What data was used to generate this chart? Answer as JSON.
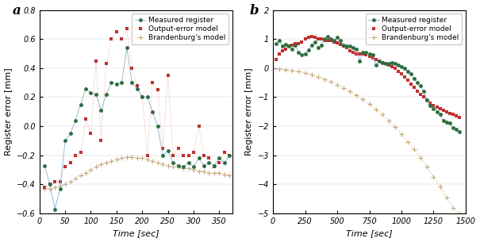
{
  "a": {
    "measured_x": [
      10,
      20,
      30,
      40,
      50,
      60,
      70,
      80,
      90,
      100,
      110,
      120,
      130,
      140,
      150,
      160,
      170,
      180,
      190,
      200,
      210,
      220,
      230,
      240,
      250,
      260,
      270,
      280,
      290,
      300,
      310,
      320,
      330,
      340,
      350,
      360,
      370
    ],
    "measured_y": [
      -0.27,
      -0.4,
      -0.57,
      -0.43,
      -0.1,
      -0.05,
      0.04,
      0.15,
      0.26,
      0.23,
      0.22,
      0.11,
      0.22,
      0.3,
      0.29,
      0.3,
      0.54,
      0.3,
      0.26,
      0.2,
      0.2,
      0.1,
      0.0,
      -0.2,
      -0.17,
      -0.25,
      -0.27,
      -0.28,
      -0.25,
      -0.28,
      -0.22,
      -0.27,
      -0.25,
      -0.27,
      -0.22,
      -0.25,
      -0.2
    ],
    "oe_x": [
      10,
      20,
      30,
      40,
      50,
      60,
      70,
      80,
      90,
      100,
      110,
      120,
      130,
      140,
      150,
      160,
      170,
      180,
      190,
      200,
      210,
      220,
      230,
      240,
      250,
      260,
      270,
      280,
      290,
      300,
      310,
      320,
      330,
      340,
      350,
      360,
      370
    ],
    "oe_y": [
      -0.42,
      -0.4,
      -0.38,
      -0.38,
      -0.28,
      -0.25,
      -0.2,
      -0.18,
      0.05,
      -0.05,
      0.45,
      -0.1,
      0.43,
      0.6,
      0.65,
      0.6,
      0.67,
      0.4,
      0.28,
      0.2,
      -0.2,
      0.3,
      0.25,
      -0.15,
      0.35,
      -0.2,
      -0.15,
      -0.2,
      -0.2,
      -0.18,
      0.0,
      -0.2,
      -0.22,
      -0.28,
      -0.25,
      -0.18,
      -0.2
    ],
    "brand_x": [
      10,
      20,
      30,
      40,
      50,
      60,
      70,
      80,
      90,
      100,
      110,
      120,
      130,
      140,
      150,
      160,
      170,
      180,
      190,
      200,
      210,
      220,
      230,
      240,
      250,
      260,
      270,
      280,
      290,
      300,
      310,
      320,
      330,
      340,
      350,
      360,
      370
    ],
    "brand_y": [
      -0.43,
      -0.43,
      -0.42,
      -0.41,
      -0.4,
      -0.38,
      -0.36,
      -0.34,
      -0.32,
      -0.3,
      -0.28,
      -0.26,
      -0.25,
      -0.24,
      -0.23,
      -0.22,
      -0.21,
      -0.21,
      -0.22,
      -0.22,
      -0.23,
      -0.24,
      -0.25,
      -0.26,
      -0.27,
      -0.28,
      -0.28,
      -0.29,
      -0.29,
      -0.3,
      -0.31,
      -0.31,
      -0.32,
      -0.32,
      -0.32,
      -0.33,
      -0.34
    ],
    "xlim": [
      0,
      375
    ],
    "ylim": [
      -0.6,
      0.8
    ],
    "xticks": [
      0,
      50,
      100,
      150,
      200,
      250,
      300,
      350
    ],
    "yticks": [
      -0.6,
      -0.4,
      -0.2,
      0.0,
      0.2,
      0.4,
      0.6,
      0.8
    ],
    "xlabel": "Time [sec]",
    "ylabel": "Register error [mm]",
    "label": "a"
  },
  "b": {
    "measured_x": [
      25,
      50,
      75,
      100,
      125,
      150,
      175,
      200,
      225,
      250,
      275,
      300,
      325,
      350,
      375,
      400,
      425,
      450,
      475,
      500,
      525,
      550,
      575,
      600,
      625,
      650,
      675,
      700,
      725,
      750,
      775,
      800,
      825,
      850,
      875,
      900,
      925,
      950,
      975,
      1000,
      1025,
      1050,
      1075,
      1100,
      1125,
      1150,
      1175,
      1200,
      1225,
      1250,
      1275,
      1300,
      1325,
      1350,
      1375,
      1400,
      1425,
      1450
    ],
    "measured_y": [
      0.85,
      0.95,
      0.75,
      0.82,
      0.75,
      0.65,
      0.78,
      0.55,
      0.45,
      0.5,
      0.62,
      0.8,
      0.9,
      0.7,
      0.8,
      1.0,
      1.1,
      1.0,
      0.95,
      1.05,
      0.95,
      0.8,
      0.75,
      0.75,
      0.7,
      0.65,
      0.25,
      0.55,
      0.55,
      0.5,
      0.45,
      0.1,
      0.25,
      0.2,
      0.15,
      0.15,
      0.2,
      0.15,
      0.1,
      0.05,
      0.0,
      -0.1,
      -0.2,
      -0.35,
      -0.5,
      -0.6,
      -0.8,
      -1.1,
      -1.3,
      -1.4,
      -1.5,
      -1.6,
      -1.8,
      -1.85,
      -1.9,
      -2.05,
      -2.1,
      -2.2
    ],
    "oe_x": [
      25,
      50,
      75,
      100,
      125,
      150,
      175,
      200,
      225,
      250,
      275,
      300,
      325,
      350,
      375,
      400,
      425,
      450,
      475,
      500,
      525,
      550,
      575,
      600,
      625,
      650,
      675,
      700,
      725,
      750,
      775,
      800,
      825,
      850,
      875,
      900,
      925,
      950,
      975,
      1000,
      1025,
      1050,
      1075,
      1100,
      1125,
      1150,
      1175,
      1200,
      1225,
      1250,
      1275,
      1300,
      1325,
      1350,
      1375,
      1400,
      1425,
      1450
    ],
    "oe_y": [
      0.3,
      0.5,
      0.6,
      0.65,
      0.75,
      0.8,
      0.85,
      0.85,
      0.9,
      1.0,
      1.05,
      1.1,
      1.05,
      1.0,
      1.0,
      0.95,
      0.95,
      0.95,
      0.9,
      0.88,
      0.82,
      0.75,
      0.7,
      0.6,
      0.55,
      0.5,
      0.5,
      0.48,
      0.45,
      0.4,
      0.35,
      0.3,
      0.25,
      0.2,
      0.15,
      0.1,
      0.05,
      0.0,
      -0.1,
      -0.2,
      -0.3,
      -0.4,
      -0.55,
      -0.65,
      -0.8,
      -0.9,
      -1.0,
      -1.1,
      -1.2,
      -1.3,
      -1.35,
      -1.4,
      -1.45,
      -1.5,
      -1.55,
      -1.6,
      -1.65,
      -1.7
    ],
    "brand_x": [
      0,
      50,
      100,
      150,
      200,
      250,
      300,
      350,
      400,
      450,
      500,
      550,
      600,
      650,
      700,
      750,
      800,
      850,
      900,
      950,
      1000,
      1050,
      1100,
      1150,
      1200,
      1250,
      1300,
      1350,
      1400,
      1450
    ],
    "brand_y": [
      0.0,
      -0.02,
      -0.05,
      -0.08,
      -0.12,
      -0.17,
      -0.23,
      -0.3,
      -0.38,
      -0.47,
      -0.57,
      -0.68,
      -0.8,
      -0.93,
      -1.08,
      -1.24,
      -1.41,
      -1.6,
      -1.81,
      -2.03,
      -2.27,
      -2.53,
      -2.8,
      -3.09,
      -3.4,
      -3.73,
      -4.08,
      -4.45,
      -4.8,
      -5.0
    ],
    "xlim": [
      0,
      1500
    ],
    "ylim": [
      -5,
      2
    ],
    "xticks": [
      0,
      250,
      500,
      750,
      1000,
      1250,
      1500
    ],
    "yticks": [
      -5,
      -4,
      -3,
      -2,
      -1,
      0,
      1,
      2
    ],
    "xlabel": "Time [sec]",
    "ylabel": "Register error [mm]",
    "label": "b"
  },
  "measured_marker_color": "#2d6e3e",
  "measured_line_color": "#8ab0d0",
  "oe_marker_color": "#c03030",
  "oe_line_color": "#e8a0a0",
  "brand_marker_color": "#c8a878",
  "brand_line_color": "#c8a878",
  "measured_marker": "o",
  "oe_marker": "s",
  "brand_marker": "+",
  "markersize": 3.5,
  "brand_markersize": 4.5,
  "linewidth": 0.6,
  "legend_fontsize": 6.5,
  "axis_fontsize": 8,
  "tick_fontsize": 7,
  "label_fontsize": 12
}
